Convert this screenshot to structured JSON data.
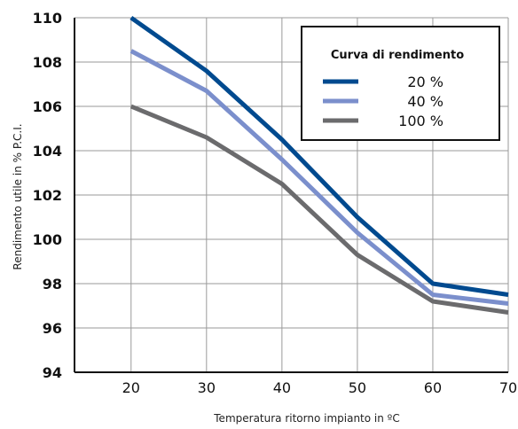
{
  "chart_data": {
    "type": "line",
    "xlabel": "Temperatura ritorno impianto in ºC",
    "ylabel": "Rendimento utile in % P.C.I.",
    "x": [
      20,
      30,
      40,
      50,
      60,
      70
    ],
    "xticks": [
      20,
      30,
      40,
      50,
      60,
      70
    ],
    "yticks": [
      94,
      96,
      98,
      100,
      102,
      104,
      106,
      108,
      110
    ],
    "xlim": [
      12.5,
      70
    ],
    "ylim": [
      94,
      110
    ],
    "grid": true,
    "legend": {
      "title": "Curva di rendimento",
      "position": "top-right"
    },
    "series": [
      {
        "name": "20 %",
        "color": "#004a8f",
        "values": [
          110.0,
          107.6,
          104.5,
          101.0,
          98.0,
          97.5
        ]
      },
      {
        "name": "40 %",
        "color": "#7b8fcc",
        "values": [
          108.5,
          106.7,
          103.6,
          100.3,
          97.5,
          97.1
        ]
      },
      {
        "name": "100 %",
        "color": "#6b6b6d",
        "values": [
          106.0,
          104.6,
          102.5,
          99.3,
          97.2,
          96.7
        ]
      }
    ]
  }
}
